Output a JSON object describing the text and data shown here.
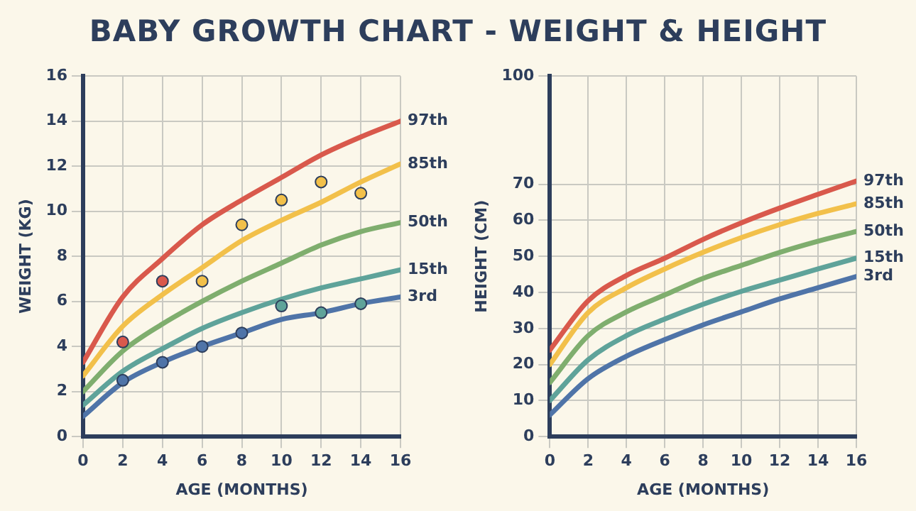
{
  "chart_data": [
    {
      "type": "line",
      "title": "BABY GROWTH CHART - WEIGHT & HEIGHT",
      "xlabel": "AGE (MONTHS)",
      "ylabel": "WEIGHT (KG)",
      "x": [
        0,
        2,
        4,
        6,
        8,
        10,
        12,
        14,
        16
      ],
      "xlim": [
        0,
        16
      ],
      "xticks": [
        0,
        2,
        4,
        6,
        8,
        10,
        12,
        14,
        16
      ],
      "ylim": [
        0,
        16
      ],
      "yticks": [
        0,
        2,
        4,
        6,
        8,
        10,
        12,
        14,
        16
      ],
      "grid": true,
      "legend": false,
      "marker": "none",
      "series": [
        {
          "name": "97th",
          "color": "#d9594c",
          "values": [
            3.3,
            6.2,
            7.9,
            9.4,
            10.5,
            11.5,
            12.5,
            13.3,
            14.0
          ]
        },
        {
          "name": "85th",
          "color": "#f2c04a",
          "values": [
            2.7,
            4.9,
            6.3,
            7.5,
            8.7,
            9.6,
            10.4,
            11.3,
            12.1
          ]
        },
        {
          "name": "50th",
          "color": "#7fae6e",
          "values": [
            2.0,
            3.8,
            5.0,
            6.0,
            6.9,
            7.7,
            8.5,
            9.1,
            9.5
          ]
        },
        {
          "name": "15th",
          "color": "#5fa39a",
          "values": [
            1.4,
            2.9,
            3.9,
            4.8,
            5.5,
            6.1,
            6.6,
            7.0,
            7.4
          ]
        },
        {
          "name": "3rd",
          "color": "#4f74a8",
          "values": [
            0.9,
            2.4,
            3.3,
            4.0,
            4.6,
            5.2,
            5.5,
            5.9,
            6.2
          ]
        },
        {
          "type": "scatter",
          "marker": "circle",
          "x": [
            2,
            4,
            6,
            8,
            10,
            12,
            14,
            10,
            2,
            4,
            6,
            8,
            12,
            14
          ],
          "values": [
            4.2,
            6.9,
            6.9,
            9.4,
            10.5,
            11.3,
            10.8,
            5.8,
            2.5,
            3.3,
            4.0,
            4.6,
            5.5,
            5.9
          ],
          "colors": [
            "#d9594c",
            "#d9594c",
            "#f2c04a",
            "#f2c04a",
            "#f2c04a",
            "#f2c04a",
            "#f2c04a",
            "#5fa39a",
            "#4f74a8",
            "#4f74a8",
            "#4f74a8",
            "#4f74a8",
            "#5fa39a",
            "#5fa39a"
          ]
        }
      ]
    },
    {
      "type": "line",
      "xlabel": "AGE (MONTHS)",
      "ylabel": "HEIGHT (CM)",
      "x": [
        0,
        2,
        4,
        6,
        8,
        10,
        12,
        14,
        16
      ],
      "xlim": [
        0,
        16
      ],
      "xticks": [
        0,
        2,
        4,
        6,
        8,
        10,
        12,
        14,
        16
      ],
      "ylim": [
        0,
        100
      ],
      "yticks": [
        0,
        10,
        20,
        30,
        40,
        50,
        60,
        70,
        100
      ],
      "grid": true,
      "legend": false,
      "marker": "none",
      "series": [
        {
          "name": "97th",
          "color": "#d9594c",
          "values": [
            24,
            37.7,
            44.7,
            49.5,
            54.7,
            59.3,
            63.4,
            67.2,
            70.9
          ]
        },
        {
          "name": "85th",
          "color": "#f2c04a",
          "values": [
            20,
            34.4,
            41.3,
            46.5,
            51.1,
            55.2,
            58.8,
            61.9,
            64.6
          ]
        },
        {
          "name": "50th",
          "color": "#7fae6e",
          "values": [
            15,
            28,
            34.6,
            39.3,
            43.9,
            47.5,
            51.1,
            54.2,
            56.9
          ]
        },
        {
          "name": "15th",
          "color": "#5fa39a",
          "values": [
            10,
            21.3,
            28,
            32.6,
            36.7,
            40.3,
            43.4,
            46.5,
            49.5
          ]
        },
        {
          "name": "3rd",
          "color": "#4f74a8",
          "values": [
            6,
            16.1,
            22.3,
            26.9,
            31,
            34.6,
            38.2,
            41.3,
            44.4
          ]
        }
      ]
    }
  ]
}
